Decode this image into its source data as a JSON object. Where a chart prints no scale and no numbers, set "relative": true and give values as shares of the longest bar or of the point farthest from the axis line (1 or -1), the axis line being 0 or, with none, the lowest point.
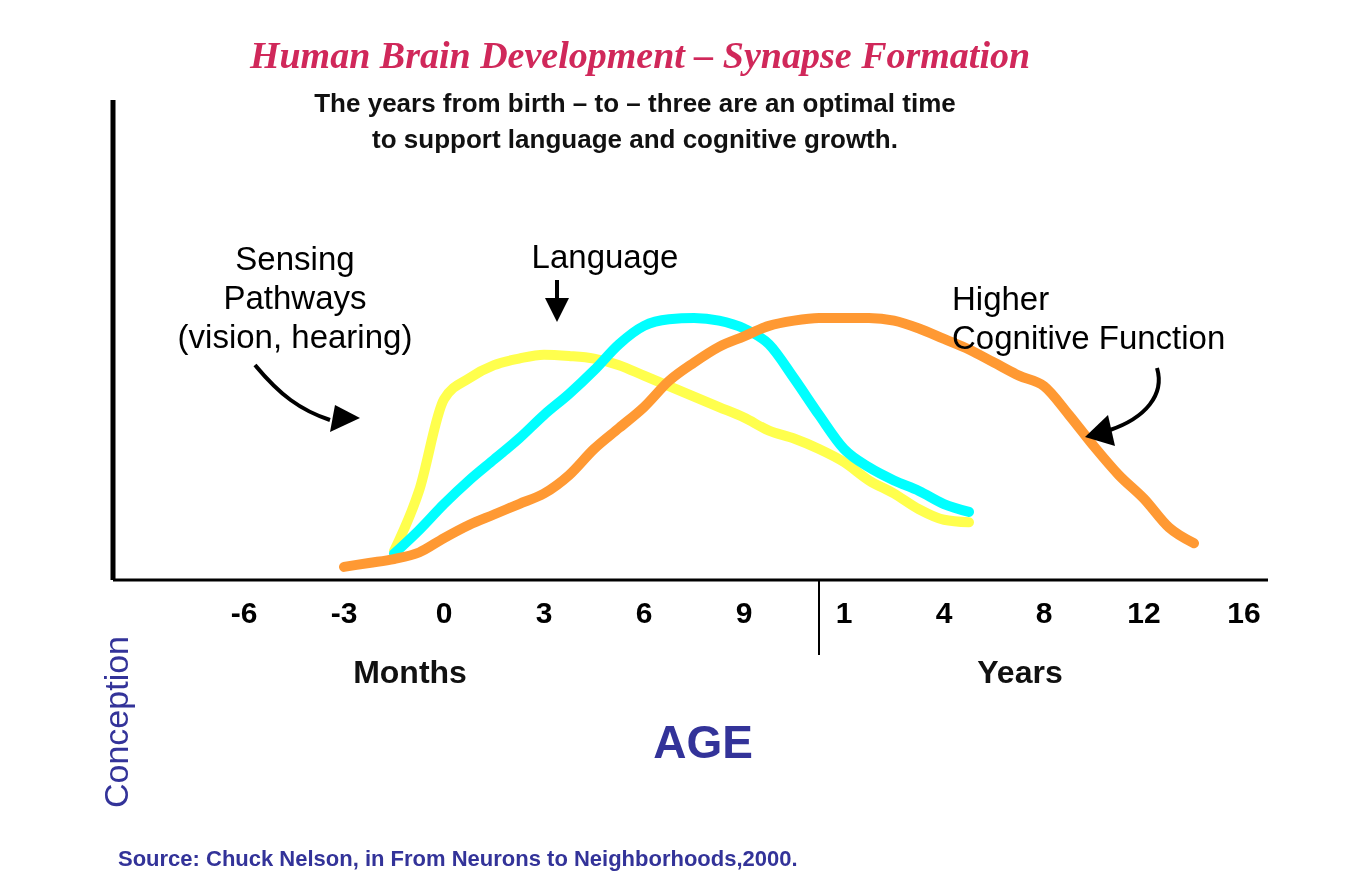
{
  "chart_data": {
    "type": "line",
    "title": "Human Brain Development – Synapse Formation",
    "subtitle": "The years from birth – to – three are an optimal time\nto support language and cognitive growth.",
    "xlabel": "AGE",
    "relative": true,
    "legend": false,
    "marker": "none",
    "line_style": "solid",
    "categories": [
      "-6",
      null,
      null,
      null,
      "-3",
      null,
      null,
      null,
      "0",
      null,
      null,
      null,
      "3",
      null,
      null,
      null,
      "6",
      null,
      null,
      null,
      "9",
      null,
      null,
      null,
      "1",
      null,
      null,
      null,
      "4",
      null,
      null,
      null,
      "8",
      null,
      null,
      null,
      "12",
      null,
      null,
      null,
      "16"
    ],
    "annotations": [
      "Months",
      "Years",
      "Conception",
      "Source: Chuck Nelson, in From Neurons to Neighborhoods,2000."
    ],
    "series": [
      {
        "name": "Sensing\nPathways\n(vision, hearing)",
        "color": "#ffff4d",
        "values": [
          null,
          null,
          null,
          null,
          null,
          null,
          0.11,
          0.34,
          0.69,
          0.77,
          0.82,
          0.845,
          0.86,
          0.855,
          0.845,
          0.82,
          0.78,
          0.74,
          0.7,
          0.66,
          0.62,
          0.57,
          0.54,
          0.5,
          0.45,
          0.38,
          0.33,
          0.27,
          0.23,
          0.22,
          null,
          null,
          null,
          null,
          null,
          null,
          null,
          null,
          null,
          null,
          null
        ]
      },
      {
        "name": "Language",
        "color": "#00ffff",
        "values": [
          null,
          null,
          null,
          null,
          null,
          null,
          0.1,
          0.19,
          0.29,
          0.38,
          0.46,
          0.54,
          0.63,
          0.71,
          0.8,
          0.9,
          0.97,
          0.995,
          1.0,
          0.99,
          0.96,
          0.9,
          0.77,
          0.63,
          0.5,
          0.43,
          0.38,
          0.34,
          0.29,
          0.26,
          null,
          null,
          null,
          null,
          null,
          null,
          null,
          null,
          null,
          null,
          null
        ]
      },
      {
        "name": "Higher\nCognitive Function",
        "color": "#ff9933",
        "values": [
          null,
          null,
          null,
          null,
          0.05,
          0.065,
          0.08,
          0.105,
          0.16,
          0.21,
          0.25,
          0.29,
          0.33,
          0.4,
          0.5,
          0.58,
          0.66,
          0.76,
          0.83,
          0.89,
          0.93,
          0.97,
          0.99,
          1.0,
          1.0,
          1.0,
          0.99,
          0.96,
          0.92,
          0.88,
          0.83,
          0.78,
          0.74,
          0.63,
          0.51,
          0.4,
          0.31,
          0.2,
          0.14,
          null,
          null
        ]
      }
    ]
  }
}
